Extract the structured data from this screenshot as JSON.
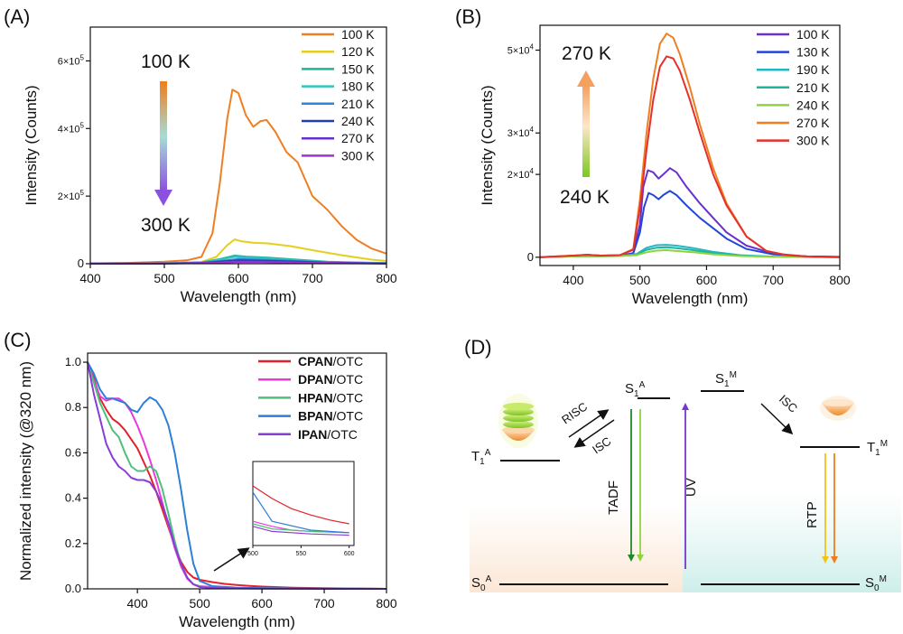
{
  "panels": {
    "A": {
      "tag": "(A)"
    },
    "B": {
      "tag": "(B)"
    },
    "C": {
      "tag": "(C)"
    },
    "D": {
      "tag": "(D)"
    }
  },
  "chart_data": [
    {
      "id": "A",
      "type": "line",
      "xlabel": "Wavelength (nm)",
      "ylabel": "Intensity (Counts)",
      "xlim": [
        400,
        800
      ],
      "ylim": [
        0,
        700000
      ],
      "xticks": [
        {
          "v": 400,
          "label": "400"
        },
        {
          "v": 500,
          "label": "500"
        },
        {
          "v": 600,
          "label": "600"
        },
        {
          "v": 700,
          "label": "700"
        },
        {
          "v": 800,
          "label": "800"
        }
      ],
      "yticks": [
        {
          "v": 0,
          "label": "0",
          "exp": ""
        },
        {
          "v": 200000,
          "label": "2×10",
          "exp": "5"
        },
        {
          "v": 400000,
          "label": "4×10",
          "exp": "5"
        },
        {
          "v": 600000,
          "label": "6×10",
          "exp": "5"
        }
      ],
      "legend_position": "top-right",
      "annotation": {
        "top": "100 K",
        "bottom": "300 K",
        "arrow": "down",
        "colors": [
          "#f07d1a",
          "#a6dcd6",
          "#8b50e0"
        ]
      },
      "series": [
        {
          "name": "100 K",
          "color": "#ef7f22",
          "x": [
            400,
            450,
            500,
            530,
            550,
            565,
            575,
            585,
            592,
            600,
            610,
            620,
            630,
            638,
            650,
            665,
            680,
            700,
            720,
            740,
            760,
            780,
            800
          ],
          "y": [
            1000,
            2500,
            6000,
            10000,
            20000,
            90000,
            240000,
            430000,
            515000,
            505000,
            440000,
            405000,
            422000,
            425000,
            390000,
            330000,
            300000,
            200000,
            160000,
            110000,
            70000,
            45000,
            30000
          ]
        },
        {
          "name": "120 K",
          "color": "#e6cf1c",
          "x": [
            400,
            500,
            550,
            570,
            585,
            595,
            605,
            620,
            640,
            670,
            700,
            740,
            780,
            800
          ],
          "y": [
            500,
            2000,
            5000,
            20000,
            55000,
            72000,
            66000,
            62000,
            60000,
            52000,
            40000,
            25000,
            12000,
            8000
          ]
        },
        {
          "name": "150 K",
          "color": "#1fb59a",
          "x": [
            400,
            500,
            550,
            575,
            595,
            610,
            640,
            680,
            720,
            800
          ],
          "y": [
            300,
            1500,
            4000,
            14000,
            24000,
            21000,
            18000,
            12000,
            6000,
            2000
          ]
        },
        {
          "name": "180 K",
          "color": "#2fc6c2",
          "x": [
            400,
            500,
            550,
            575,
            595,
            610,
            640,
            680,
            720,
            800
          ],
          "y": [
            300,
            1200,
            3500,
            12000,
            20000,
            18000,
            15000,
            10000,
            5000,
            1500
          ]
        },
        {
          "name": "210 K",
          "color": "#2e86d6",
          "x": [
            400,
            500,
            550,
            580,
            600,
            630,
            680,
            720,
            800
          ],
          "y": [
            300,
            1000,
            3000,
            9000,
            14000,
            12000,
            8000,
            4000,
            1000
          ]
        },
        {
          "name": "240 K",
          "color": "#1f3fb0",
          "x": [
            400,
            500,
            550,
            580,
            600,
            630,
            680,
            720,
            800
          ],
          "y": [
            200,
            800,
            2500,
            7000,
            10000,
            9000,
            6000,
            3000,
            800
          ]
        },
        {
          "name": "270 K",
          "color": "#6a2fd1",
          "x": [
            400,
            500,
            550,
            580,
            600,
            630,
            680,
            720,
            800
          ],
          "y": [
            200,
            700,
            2000,
            5000,
            7000,
            6500,
            4500,
            2500,
            600
          ]
        },
        {
          "name": "300 K",
          "color": "#9a36c8",
          "x": [
            400,
            500,
            550,
            580,
            600,
            630,
            680,
            720,
            800
          ],
          "y": [
            200,
            600,
            1500,
            3500,
            5000,
            4500,
            3000,
            1800,
            500
          ]
        }
      ]
    },
    {
      "id": "B",
      "type": "line",
      "xlabel": "Wavelength (nm)",
      "ylabel": "Intensity (Counts)",
      "xlim": [
        350,
        800
      ],
      "ylim": [
        -2000,
        56000
      ],
      "xticks": [
        {
          "v": 400,
          "label": "400"
        },
        {
          "v": 500,
          "label": "500"
        },
        {
          "v": 600,
          "label": "600"
        },
        {
          "v": 700,
          "label": "700"
        },
        {
          "v": 800,
          "label": "800"
        }
      ],
      "yticks": [
        {
          "v": 0,
          "label": "0",
          "exp": ""
        },
        {
          "v": 20000,
          "label": "2×10",
          "exp": "4"
        },
        {
          "v": 30000,
          "label": "3×10",
          "exp": "4"
        },
        {
          "v": 50000,
          "label": "5×10",
          "exp": "4"
        }
      ],
      "legend_position": "top-right",
      "annotation": {
        "top": "270 K",
        "bottom": "240 K",
        "arrow": "up",
        "colors": [
          "#f4a060",
          "#fde6c8",
          "#7dc820"
        ]
      },
      "series": [
        {
          "name": "100 K",
          "color": "#6a2fd1",
          "x": [
            350,
            400,
            420,
            440,
            470,
            490,
            500,
            505,
            512,
            520,
            528,
            535,
            545,
            555,
            570,
            590,
            610,
            630,
            660,
            700,
            750,
            800
          ],
          "y": [
            0,
            300,
            600,
            400,
            400,
            1000,
            8000,
            17000,
            21000,
            20500,
            19000,
            20000,
            21500,
            20500,
            17000,
            13000,
            9500,
            6000,
            2800,
            900,
            200,
            100
          ]
        },
        {
          "name": "130 K",
          "color": "#2346d8",
          "x": [
            350,
            400,
            420,
            440,
            470,
            490,
            500,
            506,
            513,
            520,
            528,
            535,
            545,
            555,
            570,
            590,
            610,
            630,
            660,
            700,
            750,
            800
          ],
          "y": [
            0,
            300,
            600,
            400,
            400,
            900,
            6000,
            12000,
            15500,
            15000,
            14000,
            15000,
            16000,
            15000,
            12500,
            9500,
            7000,
            4500,
            2000,
            700,
            200,
            100
          ]
        },
        {
          "name": "190 K",
          "color": "#22b6c6",
          "x": [
            350,
            400,
            470,
            495,
            510,
            525,
            540,
            555,
            580,
            610,
            650,
            700,
            800
          ],
          "y": [
            0,
            200,
            300,
            800,
            2300,
            2900,
            3000,
            2800,
            2200,
            1300,
            500,
            150,
            50
          ]
        },
        {
          "name": "210 K",
          "color": "#1fb59a",
          "x": [
            350,
            400,
            470,
            495,
            510,
            525,
            540,
            555,
            580,
            610,
            650,
            700,
            800
          ],
          "y": [
            0,
            200,
            300,
            700,
            1800,
            2300,
            2400,
            2200,
            1700,
            1000,
            400,
            120,
            40
          ]
        },
        {
          "name": "240 K",
          "color": "#8fd43e",
          "x": [
            350,
            400,
            470,
            495,
            510,
            525,
            540,
            555,
            580,
            610,
            650,
            700,
            800
          ],
          "y": [
            0,
            200,
            300,
            500,
            1200,
            1600,
            1700,
            1500,
            1200,
            700,
            300,
            100,
            30
          ]
        },
        {
          "name": "270 K",
          "color": "#ef7f22",
          "x": [
            350,
            400,
            420,
            440,
            470,
            490,
            500,
            510,
            520,
            530,
            540,
            550,
            560,
            575,
            590,
            610,
            630,
            660,
            690,
            720,
            760,
            800
          ],
          "y": [
            0,
            400,
            600,
            400,
            500,
            2000,
            14000,
            30000,
            43000,
            51500,
            54000,
            53000,
            49000,
            41000,
            32000,
            21500,
            13000,
            5000,
            1500,
            500,
            100,
            0
          ]
        },
        {
          "name": "300 K",
          "color": "#e4312b",
          "x": [
            350,
            400,
            420,
            440,
            470,
            490,
            500,
            510,
            520,
            530,
            540,
            550,
            560,
            575,
            590,
            610,
            630,
            660,
            690,
            720,
            760,
            800
          ],
          "y": [
            0,
            400,
            600,
            400,
            500,
            1800,
            12000,
            26000,
            38000,
            46000,
            48500,
            48000,
            45000,
            38000,
            30000,
            20000,
            12500,
            5000,
            1500,
            500,
            100,
            0
          ]
        }
      ]
    },
    {
      "id": "C",
      "type": "line",
      "xlabel": "Wavelength (nm)",
      "ylabel": "Normalized intensity (@320 nm)",
      "xlim": [
        320,
        800
      ],
      "ylim": [
        0,
        1.04
      ],
      "xticks": [
        {
          "v": 400,
          "label": "400"
        },
        {
          "v": 500,
          "label": "500"
        },
        {
          "v": 600,
          "label": "600"
        },
        {
          "v": 700,
          "label": "700"
        },
        {
          "v": 800,
          "label": "800"
        }
      ],
      "yticks": [
        {
          "v": 0,
          "label": "0.0",
          "exp": ""
        },
        {
          "v": 0.2,
          "label": "0.2",
          "exp": ""
        },
        {
          "v": 0.4,
          "label": "0.4",
          "exp": ""
        },
        {
          "v": 0.6,
          "label": "0.6",
          "exp": ""
        },
        {
          "v": 0.8,
          "label": "0.8",
          "exp": ""
        },
        {
          "v": 1.0,
          "label": "1.0",
          "exp": ""
        }
      ],
      "legend_position": "top-right",
      "inset": {
        "xticks": [
          "500",
          "550",
          "600"
        ],
        "xlim": [
          500,
          605
        ]
      },
      "series": [
        {
          "name_bold": "CPAN",
          "name_rest": "/OTC",
          "color": "#e4212b",
          "x": [
            320,
            330,
            340,
            350,
            360,
            370,
            380,
            390,
            400,
            410,
            420,
            430,
            440,
            450,
            460,
            470,
            480,
            490,
            500,
            520,
            540,
            560,
            580,
            600,
            620,
            650,
            700,
            800
          ],
          "y": [
            1.0,
            0.93,
            0.84,
            0.79,
            0.75,
            0.73,
            0.7,
            0.66,
            0.62,
            0.56,
            0.5,
            0.43,
            0.35,
            0.27,
            0.19,
            0.12,
            0.075,
            0.05,
            0.04,
            0.03,
            0.022,
            0.017,
            0.013,
            0.01,
            0.008,
            0.005,
            0.003,
            0.0
          ]
        },
        {
          "name_bold": "DPAN",
          "name_rest": "/OTC",
          "color": "#e83bd8",
          "x": [
            320,
            330,
            340,
            350,
            360,
            370,
            380,
            390,
            400,
            410,
            420,
            430,
            440,
            450,
            460,
            470,
            480,
            490,
            500,
            520,
            540,
            560,
            600,
            700,
            800
          ],
          "y": [
            1.0,
            0.92,
            0.85,
            0.83,
            0.84,
            0.84,
            0.82,
            0.78,
            0.72,
            0.65,
            0.57,
            0.48,
            0.38,
            0.28,
            0.18,
            0.1,
            0.045,
            0.02,
            0.012,
            0.008,
            0.005,
            0.004,
            0.003,
            0.001,
            0.0
          ]
        },
        {
          "name_bold": "HPAN",
          "name_rest": "/OTC",
          "color": "#4fc07a",
          "x": [
            320,
            330,
            340,
            350,
            360,
            370,
            380,
            390,
            400,
            410,
            420,
            430,
            440,
            450,
            460,
            470,
            480,
            490,
            500,
            520,
            560,
            600,
            700,
            800
          ],
          "y": [
            1.0,
            0.91,
            0.82,
            0.76,
            0.7,
            0.67,
            0.6,
            0.54,
            0.52,
            0.52,
            0.54,
            0.52,
            0.44,
            0.33,
            0.21,
            0.11,
            0.05,
            0.02,
            0.01,
            0.006,
            0.004,
            0.003,
            0.001,
            0.0
          ]
        },
        {
          "name_bold": "BPAN",
          "name_rest": "/OTC",
          "color": "#2e7fd6",
          "x": [
            320,
            330,
            340,
            350,
            360,
            370,
            380,
            390,
            400,
            410,
            420,
            430,
            440,
            450,
            460,
            470,
            480,
            490,
            500,
            520,
            560,
            600,
            700,
            800
          ],
          "y": [
            1.0,
            0.95,
            0.88,
            0.84,
            0.84,
            0.83,
            0.82,
            0.79,
            0.78,
            0.82,
            0.845,
            0.83,
            0.79,
            0.72,
            0.6,
            0.44,
            0.26,
            0.11,
            0.035,
            0.012,
            0.005,
            0.003,
            0.001,
            0.0
          ]
        },
        {
          "name_bold": "IPAN",
          "name_rest": "/OTC",
          "color": "#8a3cd6",
          "x": [
            320,
            330,
            340,
            350,
            360,
            370,
            380,
            390,
            400,
            410,
            420,
            430,
            440,
            450,
            460,
            470,
            480,
            490,
            500,
            520,
            560,
            600,
            700,
            800
          ],
          "y": [
            1.0,
            0.86,
            0.75,
            0.64,
            0.58,
            0.54,
            0.52,
            0.49,
            0.48,
            0.48,
            0.47,
            0.43,
            0.37,
            0.29,
            0.19,
            0.11,
            0.05,
            0.02,
            0.008,
            0.004,
            0.002,
            0.001,
            0.0,
            0.0
          ]
        }
      ]
    }
  ],
  "diagram": {
    "levels": {
      "s1a": "S",
      "s1a_sub": "1",
      "s1a_sup": "A",
      "t1a": "T",
      "t1a_sub": "1",
      "t1a_sup": "A",
      "s1m": "S",
      "s1m_sub": "1",
      "s1m_sup": "M",
      "t1m": "T",
      "t1m_sub": "1",
      "t1m_sup": "M",
      "s0a": "S",
      "s0a_sub": "0",
      "s0a_sup": "A",
      "s0m": "S",
      "s0m_sub": "0",
      "s0m_sup": "M"
    },
    "processes": {
      "risc": "RISC",
      "isc_left": "ISC",
      "isc_right": "ISC",
      "tadf": "TADF",
      "uv": "UV",
      "rtp": "RTP"
    },
    "colors": {
      "left_bg": "#fbe7d6",
      "right_bg": "#d8f1ee",
      "tadf_dark": "#1f8a2a",
      "tadf_light": "#8fd43e",
      "uv": "#7a36c8",
      "rtp_yellow": "#f2c21a",
      "rtp_orange": "#f07d1a"
    }
  }
}
